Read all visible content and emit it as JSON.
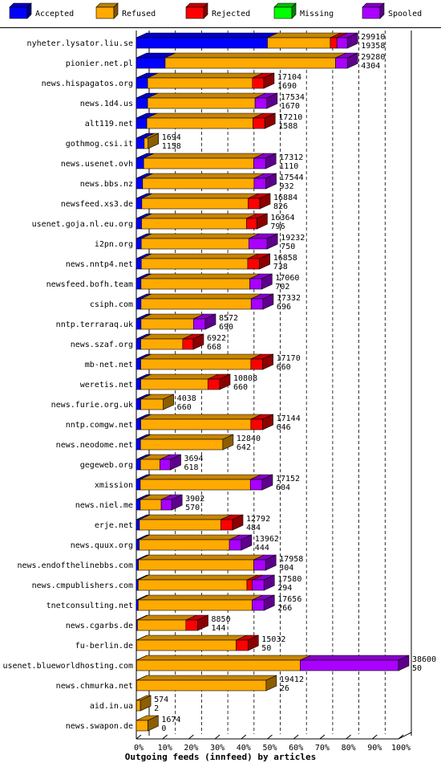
{
  "chart_data": {
    "type": "bar",
    "orientation": "horizontal",
    "stacked": true,
    "style": "3d",
    "grid": true,
    "legend_position": "top",
    "xlabel": "Outgoing feeds (innfeed) by articles",
    "xticks": [
      "0%",
      "10%",
      "20%",
      "30%",
      "40%",
      "50%",
      "60%",
      "70%",
      "80%",
      "90%",
      "100%"
    ],
    "xlim": [
      0,
      100
    ],
    "series": [
      {
        "name": "Accepted",
        "color": "#0000ff"
      },
      {
        "name": "Refused",
        "color": "#ffaa00"
      },
      {
        "name": "Rejected",
        "color": "#ff0000"
      },
      {
        "name": "Missing",
        "color": "#00ff00"
      },
      {
        "name": "Spooled",
        "color": "#aa00ff"
      }
    ],
    "categories": [
      {
        "name": "nyheter.lysator.liu.se",
        "offered": "29910",
        "accepted": "19358",
        "pct": [
          50.0,
          24.0,
          2.5,
          0,
          4.0
        ]
      },
      {
        "name": "pionier.net.pl",
        "offered": "29280",
        "accepted": "4304",
        "pct": [
          11.0,
          65.0,
          0,
          0,
          4.5
        ]
      },
      {
        "name": "news.hispagatos.org",
        "offered": "17104",
        "accepted": "1690",
        "pct": [
          4.3,
          40.0,
          4.3,
          0,
          0
        ]
      },
      {
        "name": "news.1d4.us",
        "offered": "17534",
        "accepted": "1670",
        "pct": [
          4.3,
          41.0,
          0,
          0,
          4.5
        ]
      },
      {
        "name": "alt119.net",
        "offered": "17210",
        "accepted": "1588",
        "pct": [
          4.0,
          40.5,
          4.5,
          0,
          0
        ]
      },
      {
        "name": "gothmog.csi.it",
        "offered": "1694",
        "accepted": "1158",
        "pct": [
          3.0,
          1.5,
          0,
          0,
          0
        ]
      },
      {
        "name": "news.usenet.ovh",
        "offered": "17312",
        "accepted": "1110",
        "pct": [
          2.8,
          42.0,
          0,
          0,
          4.5
        ]
      },
      {
        "name": "news.bbs.nz",
        "offered": "17544",
        "accepted": "932",
        "pct": [
          2.4,
          42.5,
          0,
          0,
          4.5
        ]
      },
      {
        "name": "newsfeed.xs3.de",
        "offered": "16884",
        "accepted": "826",
        "pct": [
          2.1,
          40.5,
          4.5,
          0,
          0
        ]
      },
      {
        "name": "usenet.goja.nl.eu.org",
        "offered": "16364",
        "accepted": "796",
        "pct": [
          2.0,
          40.0,
          4.0,
          0,
          0
        ]
      },
      {
        "name": "i2pn.org",
        "offered": "19232",
        "accepted": "750",
        "pct": [
          1.9,
          41.0,
          0,
          0,
          7.0
        ]
      },
      {
        "name": "news.nntp4.net",
        "offered": "16858",
        "accepted": "738",
        "pct": [
          1.9,
          40.6,
          4.5,
          0,
          0
        ]
      },
      {
        "name": "newsfeed.bofh.team",
        "offered": "17060",
        "accepted": "702",
        "pct": [
          1.8,
          41.5,
          0,
          0,
          4.5
        ]
      },
      {
        "name": "csiph.com",
        "offered": "17332",
        "accepted": "696",
        "pct": [
          1.8,
          42.0,
          0,
          0,
          4.5
        ]
      },
      {
        "name": "nntp.terraraq.uk",
        "offered": "8572",
        "accepted": "690",
        "pct": [
          1.8,
          20.0,
          0,
          0,
          4.5
        ]
      },
      {
        "name": "news.szaf.org",
        "offered": "6922",
        "accepted": "668",
        "pct": [
          1.7,
          16.0,
          4.0,
          0,
          0
        ]
      },
      {
        "name": "mb-net.net",
        "offered": "17170",
        "accepted": "660",
        "pct": [
          1.7,
          42.0,
          4.5,
          0,
          0
        ]
      },
      {
        "name": "weretis.net",
        "offered": "10808",
        "accepted": "660",
        "pct": [
          1.7,
          25.6,
          4.5,
          0,
          0
        ]
      },
      {
        "name": "news.furie.org.uk",
        "offered": "4038",
        "accepted": "660",
        "pct": [
          1.7,
          8.6,
          0,
          0,
          0
        ]
      },
      {
        "name": "nntp.comgw.net",
        "offered": "17144",
        "accepted": "646",
        "pct": [
          1.7,
          42.0,
          4.5,
          0,
          0
        ]
      },
      {
        "name": "news.neodome.net",
        "offered": "12840",
        "accepted": "642",
        "pct": [
          1.6,
          31.4,
          0,
          0,
          0
        ]
      },
      {
        "name": "gegeweb.org",
        "offered": "3694",
        "accepted": "618",
        "pct": [
          1.6,
          7.4,
          0,
          0,
          4.0
        ]
      },
      {
        "name": "xmission",
        "offered": "17152",
        "accepted": "604",
        "pct": [
          1.5,
          42.0,
          0,
          0,
          4.5
        ]
      },
      {
        "name": "news.niel.me",
        "offered": "3902",
        "accepted": "570",
        "pct": [
          1.5,
          8.0,
          0,
          0,
          4.0
        ]
      },
      {
        "name": "erje.net",
        "offered": "12792",
        "accepted": "484",
        "pct": [
          1.2,
          31.0,
          4.5,
          0,
          0
        ]
      },
      {
        "name": "news.quux.org",
        "offered": "13962",
        "accepted": "444",
        "pct": [
          1.1,
          34.4,
          0,
          0,
          4.5
        ]
      },
      {
        "name": "news.endofthelinebbs.com",
        "offered": "17958",
        "accepted": "304",
        "pct": [
          0.8,
          44.0,
          0,
          0,
          4.5
        ]
      },
      {
        "name": "news.cmpublishers.com",
        "offered": "17580",
        "accepted": "294",
        "pct": [
          0.7,
          41.5,
          2.0,
          0,
          4.5
        ]
      },
      {
        "name": "tnetconsulting.net",
        "offered": "17656",
        "accepted": "266",
        "pct": [
          0.7,
          43.5,
          0,
          0,
          4.5
        ]
      },
      {
        "name": "news.cgarbs.de",
        "offered": "8850",
        "accepted": "144",
        "pct": [
          0.4,
          18.5,
          4.5,
          0,
          0
        ]
      },
      {
        "name": "fu-berlin.de",
        "offered": "15032",
        "accepted": "50",
        "pct": [
          0.1,
          38.0,
          4.5,
          0,
          0
        ]
      },
      {
        "name": "usenet.blueworldhosting.com",
        "offered": "38600",
        "accepted": "50",
        "pct": [
          0.1,
          62.4,
          0,
          0,
          37.5
        ]
      },
      {
        "name": "news.chmurka.net",
        "offered": "19412",
        "accepted": "26",
        "pct": [
          0.1,
          49.4,
          0,
          0,
          0
        ]
      },
      {
        "name": "aid.in.ua",
        "offered": "574",
        "accepted": "2",
        "pct": [
          0.05,
          1.5,
          0,
          0,
          0
        ]
      },
      {
        "name": "news.swapon.de",
        "offered": "1674",
        "accepted": "0",
        "pct": [
          0,
          4.4,
          0,
          0,
          0
        ]
      }
    ]
  }
}
